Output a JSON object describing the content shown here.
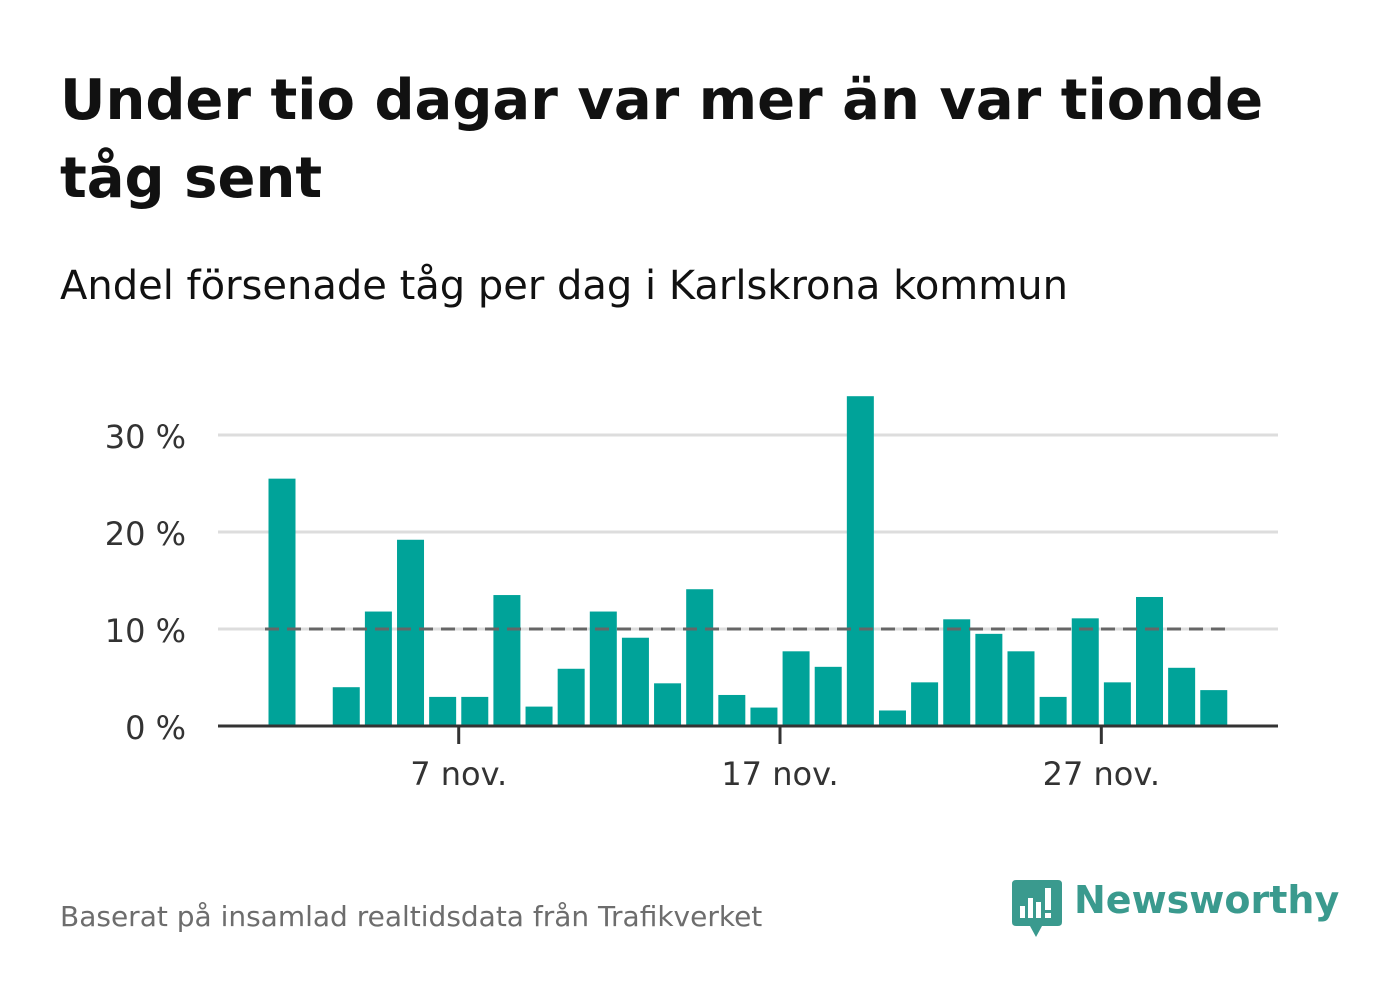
{
  "header": {
    "title": "Under tio dagar var mer än var tionde tåg sent",
    "subtitle": "Andel försenade tåg per dag i Karlskrona kommun"
  },
  "footer": {
    "source": "Baserat på insamlad realtidsdata från Trafikverket",
    "brand": "Newsworthy",
    "brand_icon": "newsworthy-logo-icon"
  },
  "colors": {
    "bar": "#00a399",
    "grid": "#dddddd",
    "axis": "#333333",
    "reference_line": "#666666",
    "brand": "#3a9a8e"
  },
  "chart_data": {
    "type": "bar",
    "title": "Under tio dagar var mer än var tionde tåg sent",
    "subtitle": "Andel försenade tåg per dag i Karlskrona kommun",
    "xlabel": "",
    "ylabel": "",
    "x_unit": "day (November)",
    "x": [
      1,
      2,
      3,
      4,
      5,
      6,
      7,
      8,
      9,
      10,
      11,
      12,
      13,
      14,
      15,
      16,
      17,
      18,
      19,
      20,
      21,
      22,
      23,
      24,
      25,
      26,
      27,
      28,
      29,
      30
    ],
    "values": [
      25.5,
      null,
      4.0,
      11.8,
      19.2,
      3.0,
      3.0,
      13.5,
      2.0,
      5.9,
      11.8,
      9.1,
      4.4,
      14.1,
      3.2,
      1.9,
      7.7,
      6.1,
      34.0,
      1.6,
      4.5,
      11.0,
      9.5,
      7.7,
      3.0,
      11.1,
      4.5,
      13.3,
      6.0,
      3.7
    ],
    "ylim": [
      0,
      34
    ],
    "yticks": [
      0,
      10,
      20,
      30
    ],
    "ytick_labels": [
      "0 %",
      "10 %",
      "20 %",
      "30 %"
    ],
    "xticks": [
      7,
      17,
      27
    ],
    "xtick_labels": [
      "7 nov.",
      "17 nov.",
      "27 nov."
    ],
    "reference_line": {
      "y": 10,
      "style": "dashed"
    },
    "grid": true,
    "legend": "none"
  }
}
